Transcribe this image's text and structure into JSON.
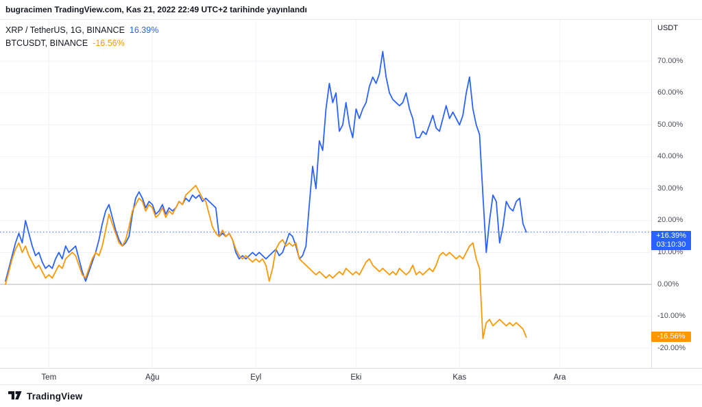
{
  "header": {
    "publish_text": "bugracimen TradingView.com, Kas 21, 2022 22:49 UTC+2 tarihinde yayınlandı"
  },
  "price_axis": {
    "unit": "USDT"
  },
  "footer": {
    "brand": "TradingView"
  },
  "chart_data": {
    "type": "line",
    "title": "XRP/TetherUS vs BTCUSDT percent change comparison",
    "x_unit": "days from 2022-06-18",
    "y_unit": "percent change",
    "ylim": [
      -22,
      78
    ],
    "grid": true,
    "colors": {
      "grid": "#F0F3FA",
      "zero_line": "#B2B5BE",
      "axis_text": "#4A4E59"
    },
    "baseline": 0,
    "y_ticks": [
      {
        "label": "70.00%",
        "value": 70
      },
      {
        "label": "60.00%",
        "value": 60
      },
      {
        "label": "50.00%",
        "value": 50
      },
      {
        "label": "40.00%",
        "value": 40
      },
      {
        "label": "30.00%",
        "value": 30
      },
      {
        "label": "20.00%",
        "value": 20
      },
      {
        "label": "10.00%",
        "value": 10
      },
      {
        "label": "0.00%",
        "value": 0
      },
      {
        "label": "-10.00%",
        "value": -10
      },
      {
        "label": "-20.00%",
        "value": -20
      }
    ],
    "month_ticks": [
      {
        "label": "Tem",
        "day": 13
      },
      {
        "label": "Ağu",
        "day": 44
      },
      {
        "label": "Eyl",
        "day": 75
      },
      {
        "label": "Eki",
        "day": 105
      },
      {
        "label": "Kas",
        "day": 136
      },
      {
        "label": "Ara",
        "day": 166
      }
    ],
    "series": [
      {
        "id": "xrp",
        "label": "XRP / TetherUS, 1G, BINANCE",
        "change_label": "16.39%",
        "axis_label": "+16.39%",
        "countdown": "03:10:30",
        "last_value": 16.39,
        "color": "#2962FF",
        "points": [
          [
            0,
            1
          ],
          [
            1,
            5
          ],
          [
            2,
            9
          ],
          [
            3,
            13
          ],
          [
            4,
            16
          ],
          [
            5,
            13
          ],
          [
            6,
            20
          ],
          [
            7,
            16
          ],
          [
            8,
            12
          ],
          [
            9,
            9
          ],
          [
            10,
            10
          ],
          [
            11,
            7
          ],
          [
            12,
            5
          ],
          [
            13,
            6
          ],
          [
            14,
            5
          ],
          [
            15,
            8
          ],
          [
            16,
            10
          ],
          [
            17,
            8
          ],
          [
            18,
            12
          ],
          [
            19,
            10
          ],
          [
            20,
            11
          ],
          [
            21,
            12
          ],
          [
            22,
            8
          ],
          [
            23,
            4
          ],
          [
            24,
            1
          ],
          [
            25,
            4
          ],
          [
            26,
            7
          ],
          [
            27,
            10
          ],
          [
            28,
            14
          ],
          [
            29,
            19
          ],
          [
            30,
            23
          ],
          [
            31,
            25
          ],
          [
            32,
            21
          ],
          [
            33,
            17
          ],
          [
            34,
            14
          ],
          [
            35,
            12
          ],
          [
            36,
            13
          ],
          [
            37,
            15
          ],
          [
            38,
            22
          ],
          [
            39,
            27
          ],
          [
            40,
            29
          ],
          [
            41,
            27
          ],
          [
            42,
            24
          ],
          [
            43,
            26
          ],
          [
            44,
            25
          ],
          [
            45,
            22
          ],
          [
            46,
            23
          ],
          [
            47,
            25
          ],
          [
            48,
            22
          ],
          [
            49,
            24
          ],
          [
            50,
            23
          ],
          [
            51,
            24
          ],
          [
            52,
            26
          ],
          [
            53,
            25
          ],
          [
            54,
            27
          ],
          [
            55,
            26
          ],
          [
            56,
            28
          ],
          [
            57,
            27
          ],
          [
            58,
            28
          ],
          [
            59,
            26
          ],
          [
            60,
            27
          ],
          [
            61,
            26
          ],
          [
            62,
            25
          ],
          [
            63,
            24
          ],
          [
            64,
            15
          ],
          [
            65,
            16
          ],
          [
            66,
            15
          ],
          [
            67,
            16
          ],
          [
            68,
            14
          ],
          [
            69,
            10
          ],
          [
            70,
            8
          ],
          [
            71,
            9
          ],
          [
            72,
            8
          ],
          [
            73,
            9
          ],
          [
            74,
            10
          ],
          [
            75,
            9
          ],
          [
            76,
            10
          ],
          [
            77,
            9
          ],
          [
            78,
            8
          ],
          [
            79,
            9
          ],
          [
            80,
            10
          ],
          [
            81,
            11
          ],
          [
            82,
            9
          ],
          [
            83,
            10
          ],
          [
            84,
            13
          ],
          [
            85,
            16
          ],
          [
            86,
            15
          ],
          [
            87,
            12
          ],
          [
            88,
            8
          ],
          [
            89,
            9
          ],
          [
            90,
            12
          ],
          [
            91,
            25
          ],
          [
            92,
            37
          ],
          [
            93,
            30
          ],
          [
            94,
            45
          ],
          [
            95,
            42
          ],
          [
            96,
            55
          ],
          [
            97,
            63
          ],
          [
            98,
            57
          ],
          [
            99,
            60
          ],
          [
            100,
            48
          ],
          [
            101,
            50
          ],
          [
            102,
            57
          ],
          [
            103,
            50
          ],
          [
            104,
            46
          ],
          [
            105,
            55
          ],
          [
            106,
            52
          ],
          [
            107,
            55
          ],
          [
            108,
            57
          ],
          [
            109,
            62
          ],
          [
            110,
            65
          ],
          [
            111,
            63
          ],
          [
            112,
            66
          ],
          [
            113,
            73
          ],
          [
            114,
            65
          ],
          [
            115,
            60
          ],
          [
            116,
            58
          ],
          [
            117,
            57
          ],
          [
            118,
            56
          ],
          [
            119,
            57
          ],
          [
            120,
            60
          ],
          [
            121,
            55
          ],
          [
            122,
            52
          ],
          [
            123,
            46
          ],
          [
            124,
            46
          ],
          [
            125,
            48
          ],
          [
            126,
            47
          ],
          [
            127,
            50
          ],
          [
            128,
            53
          ],
          [
            129,
            49
          ],
          [
            130,
            48
          ],
          [
            131,
            52
          ],
          [
            132,
            56
          ],
          [
            133,
            52
          ],
          [
            134,
            54
          ],
          [
            135,
            52
          ],
          [
            136,
            50
          ],
          [
            137,
            53
          ],
          [
            138,
            60
          ],
          [
            139,
            65
          ],
          [
            140,
            55
          ],
          [
            141,
            50
          ],
          [
            142,
            47
          ],
          [
            143,
            28
          ],
          [
            144,
            10
          ],
          [
            145,
            20
          ],
          [
            146,
            28
          ],
          [
            147,
            26
          ],
          [
            148,
            13
          ],
          [
            149,
            18
          ],
          [
            150,
            26
          ],
          [
            151,
            24
          ],
          [
            152,
            23
          ],
          [
            153,
            26
          ],
          [
            154,
            27
          ],
          [
            155,
            19
          ],
          [
            156,
            16.39
          ]
        ]
      },
      {
        "id": "btc",
        "label": "BTCUSDT, BINANCE",
        "change_label": "-16.56%",
        "axis_label": "-16.56%",
        "last_value": -16.56,
        "color": "#FF9800",
        "points": [
          [
            0,
            0
          ],
          [
            1,
            4
          ],
          [
            2,
            8
          ],
          [
            3,
            11
          ],
          [
            4,
            13
          ],
          [
            5,
            10
          ],
          [
            6,
            12
          ],
          [
            7,
            9
          ],
          [
            8,
            7
          ],
          [
            9,
            5
          ],
          [
            10,
            6
          ],
          [
            11,
            4
          ],
          [
            12,
            2
          ],
          [
            13,
            3
          ],
          [
            14,
            2
          ],
          [
            15,
            4
          ],
          [
            16,
            6
          ],
          [
            17,
            5
          ],
          [
            18,
            8
          ],
          [
            19,
            9
          ],
          [
            20,
            10
          ],
          [
            21,
            9
          ],
          [
            22,
            6
          ],
          [
            23,
            3
          ],
          [
            24,
            2
          ],
          [
            25,
            5
          ],
          [
            26,
            8
          ],
          [
            27,
            10
          ],
          [
            28,
            9
          ],
          [
            29,
            12
          ],
          [
            30,
            17
          ],
          [
            31,
            22
          ],
          [
            32,
            19
          ],
          [
            33,
            16
          ],
          [
            34,
            13
          ],
          [
            35,
            12
          ],
          [
            36,
            14
          ],
          [
            37,
            18
          ],
          [
            38,
            23
          ],
          [
            39,
            25
          ],
          [
            40,
            27
          ],
          [
            41,
            26
          ],
          [
            42,
            23
          ],
          [
            43,
            25
          ],
          [
            44,
            24
          ],
          [
            45,
            21
          ],
          [
            46,
            22
          ],
          [
            47,
            24
          ],
          [
            48,
            21
          ],
          [
            49,
            23
          ],
          [
            50,
            22
          ],
          [
            51,
            24
          ],
          [
            52,
            26
          ],
          [
            53,
            25
          ],
          [
            54,
            28
          ],
          [
            55,
            29
          ],
          [
            56,
            30
          ],
          [
            57,
            31
          ],
          [
            58,
            29
          ],
          [
            59,
            27
          ],
          [
            60,
            26
          ],
          [
            61,
            22
          ],
          [
            62,
            18
          ],
          [
            63,
            16
          ],
          [
            64,
            15
          ],
          [
            65,
            17
          ],
          [
            66,
            15
          ],
          [
            67,
            16
          ],
          [
            68,
            14
          ],
          [
            69,
            11
          ],
          [
            70,
            9
          ],
          [
            71,
            8
          ],
          [
            72,
            9
          ],
          [
            73,
            8
          ],
          [
            74,
            7
          ],
          [
            75,
            8
          ],
          [
            76,
            7
          ],
          [
            77,
            8
          ],
          [
            78,
            6
          ],
          [
            79,
            1
          ],
          [
            80,
            5
          ],
          [
            81,
            11
          ],
          [
            82,
            13
          ],
          [
            83,
            14
          ],
          [
            84,
            12
          ],
          [
            85,
            13
          ],
          [
            86,
            12
          ],
          [
            87,
            13
          ],
          [
            88,
            8
          ],
          [
            89,
            7
          ],
          [
            90,
            6
          ],
          [
            91,
            5
          ],
          [
            92,
            4
          ],
          [
            93,
            3
          ],
          [
            94,
            4
          ],
          [
            95,
            3
          ],
          [
            96,
            2
          ],
          [
            97,
            3
          ],
          [
            98,
            2
          ],
          [
            99,
            3
          ],
          [
            100,
            4
          ],
          [
            101,
            3
          ],
          [
            102,
            5
          ],
          [
            103,
            4
          ],
          [
            104,
            3
          ],
          [
            105,
            4
          ],
          [
            106,
            3
          ],
          [
            107,
            5
          ],
          [
            108,
            7
          ],
          [
            109,
            8
          ],
          [
            110,
            6
          ],
          [
            111,
            5
          ],
          [
            112,
            4
          ],
          [
            113,
            5
          ],
          [
            114,
            4
          ],
          [
            115,
            3
          ],
          [
            116,
            4
          ],
          [
            117,
            3
          ],
          [
            118,
            5
          ],
          [
            119,
            4
          ],
          [
            120,
            3
          ],
          [
            121,
            4
          ],
          [
            122,
            6
          ],
          [
            123,
            3
          ],
          [
            124,
            4
          ],
          [
            125,
            3
          ],
          [
            126,
            4
          ],
          [
            127,
            5
          ],
          [
            128,
            4
          ],
          [
            129,
            6
          ],
          [
            130,
            9
          ],
          [
            131,
            10
          ],
          [
            132,
            9
          ],
          [
            133,
            10
          ],
          [
            134,
            9
          ],
          [
            135,
            8
          ],
          [
            136,
            9
          ],
          [
            137,
            8
          ],
          [
            138,
            10
          ],
          [
            139,
            12
          ],
          [
            140,
            13
          ],
          [
            141,
            8
          ],
          [
            142,
            5
          ],
          [
            143,
            -17
          ],
          [
            144,
            -12
          ],
          [
            145,
            -11
          ],
          [
            146,
            -13
          ],
          [
            147,
            -12
          ],
          [
            148,
            -11
          ],
          [
            149,
            -12
          ],
          [
            150,
            -13
          ],
          [
            151,
            -12
          ],
          [
            152,
            -13
          ],
          [
            153,
            -12
          ],
          [
            154,
            -13
          ],
          [
            155,
            -14
          ],
          [
            156,
            -16.56
          ]
        ]
      }
    ]
  }
}
